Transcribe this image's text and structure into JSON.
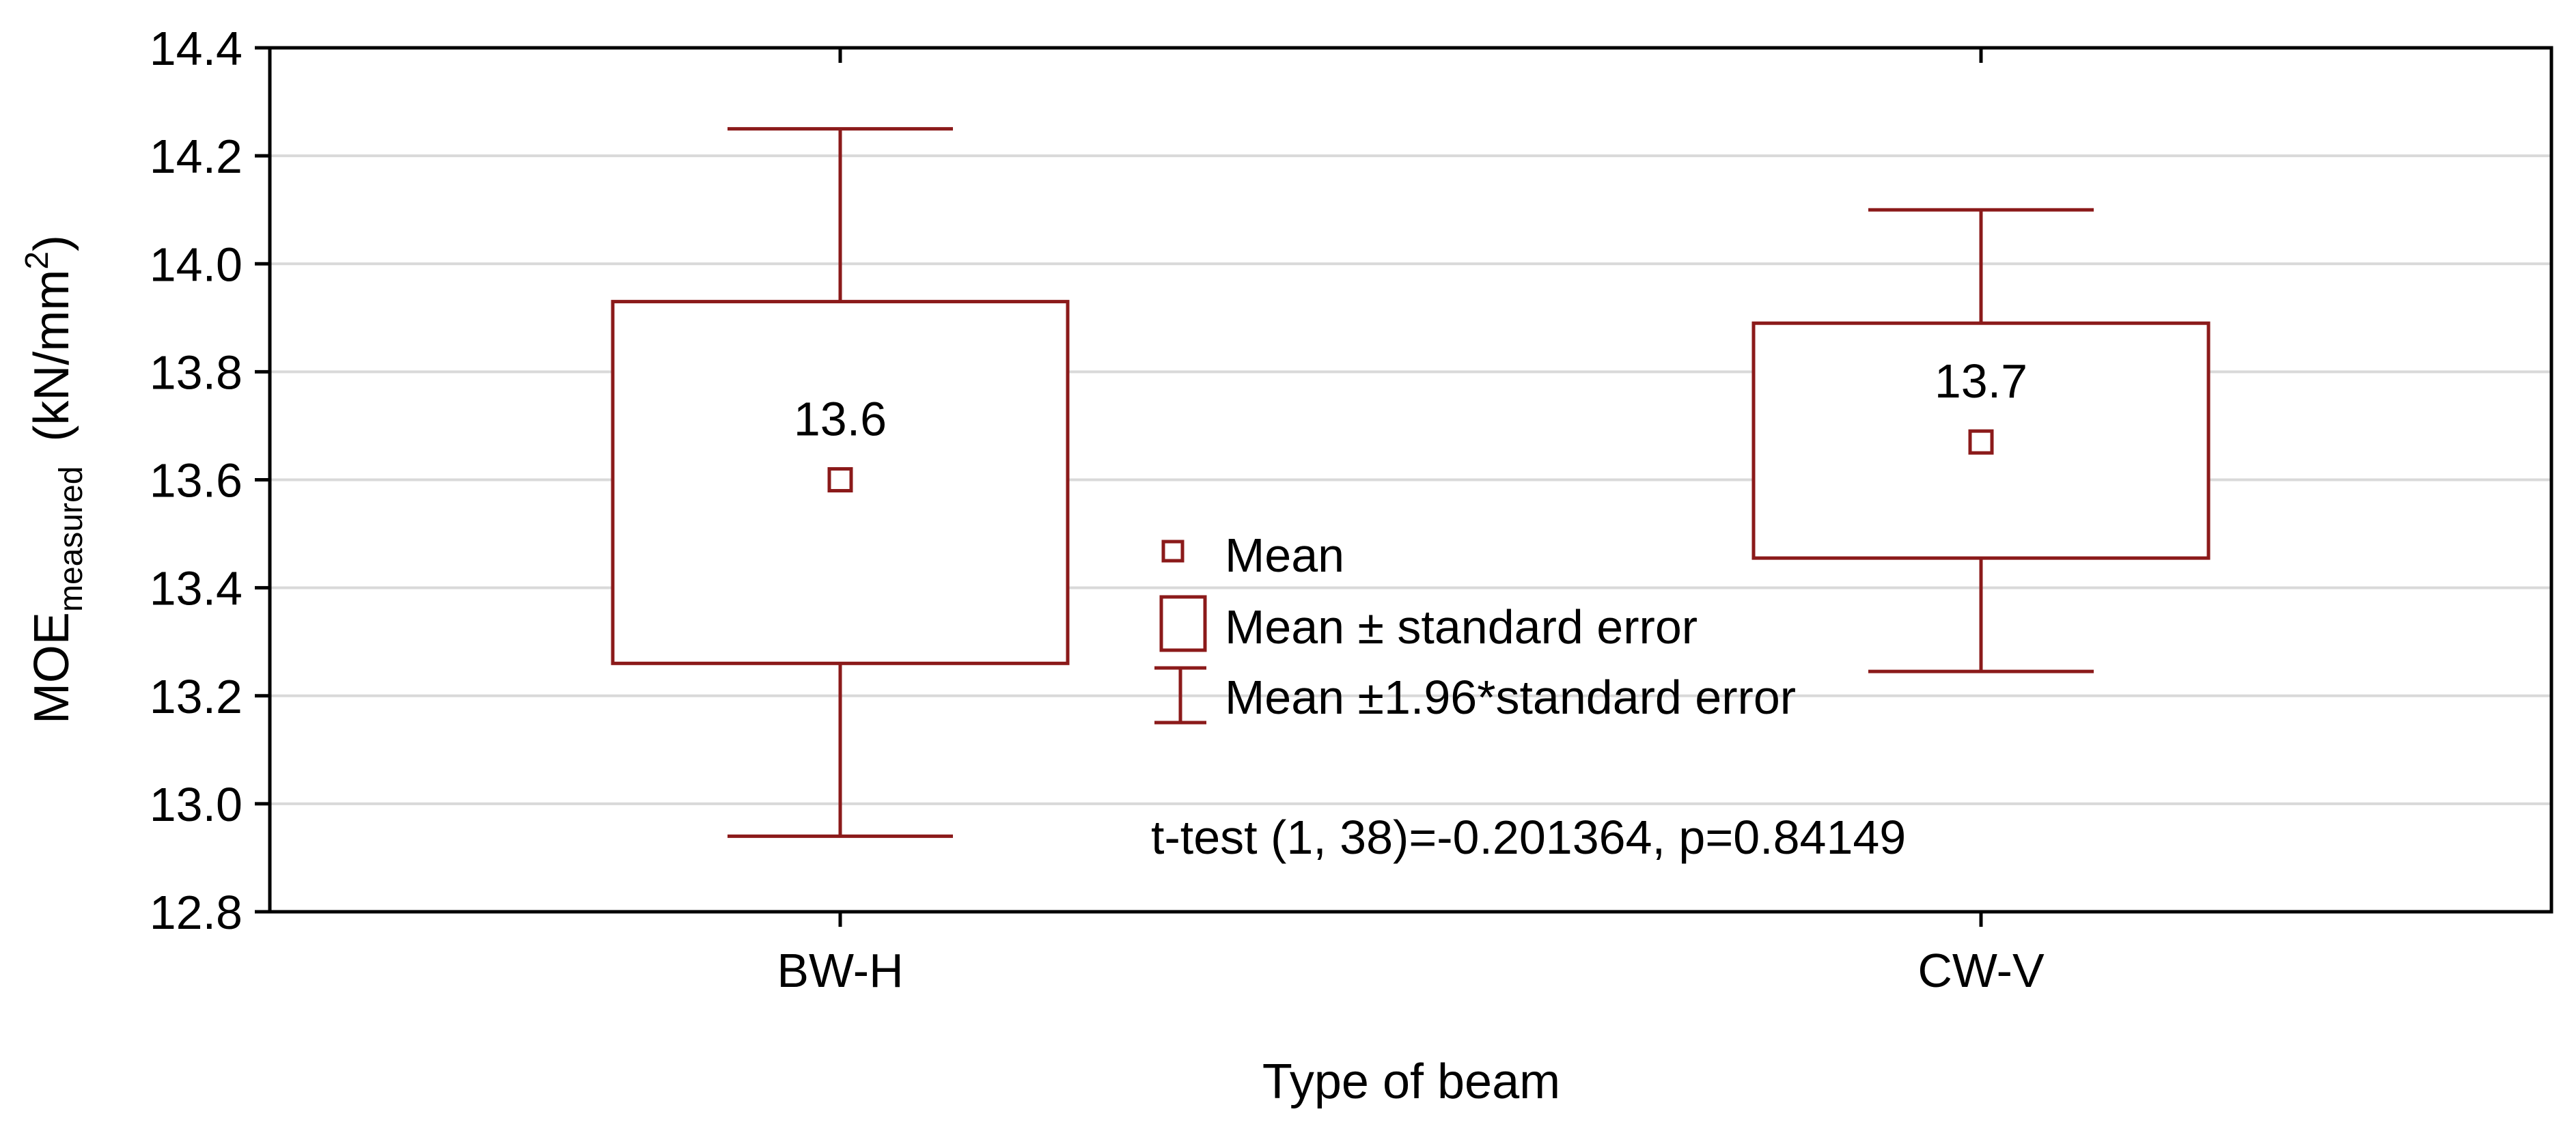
{
  "chart_data": {
    "type": "box",
    "xlabel": "Type of beam",
    "ylabel": {
      "main": "MOE",
      "subscript": "measured",
      "unit_prefix": "(kN/mm",
      "unit_superscript": "2",
      "unit_suffix": ")"
    },
    "ylim": [
      12.8,
      14.4
    ],
    "yticks": [
      "12.8",
      "13.0",
      "13.2",
      "13.4",
      "13.6",
      "13.8",
      "14.0",
      "14.2",
      "14.4"
    ],
    "grid": true,
    "categories": [
      "BW-H",
      "CW-V"
    ],
    "groups": [
      {
        "category": "BW-H",
        "mean": 13.6,
        "mean_label": "13.6",
        "se_low": 13.26,
        "se_high": 13.93,
        "ci_low": 12.94,
        "ci_high": 14.25
      },
      {
        "category": "CW-V",
        "mean": 13.67,
        "mean_label": "13.7",
        "se_low": 13.455,
        "se_high": 13.89,
        "ci_low": 13.245,
        "ci_high": 14.1
      }
    ],
    "legend": {
      "position": "center",
      "items": [
        "Mean",
        "Mean ± standard error",
        "Mean ±1.96*standard error"
      ]
    },
    "annotation": "t-test (1, 38)=-0.201364, p=0.84149",
    "colors": {
      "series": "#8b1a1a",
      "grid": "#d9d9d9",
      "axis": "#000000"
    }
  }
}
